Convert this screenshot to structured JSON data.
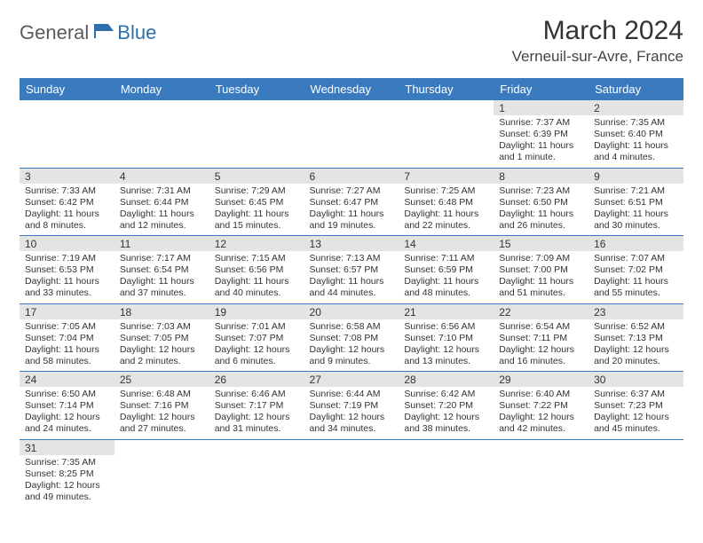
{
  "logo": {
    "part1": "General",
    "part2": "Blue"
  },
  "title": "March 2024",
  "location": "Verneuil-sur-Avre, France",
  "colors": {
    "header_bg": "#3a7bbf",
    "header_text": "#ffffff",
    "daynum_bg": "#e4e4e4",
    "row_border": "#3a7bbf",
    "logo_gray": "#5b5b5b",
    "logo_blue": "#2f6fae"
  },
  "weekdays": [
    "Sunday",
    "Monday",
    "Tuesday",
    "Wednesday",
    "Thursday",
    "Friday",
    "Saturday"
  ],
  "startOffset": 5,
  "days": [
    {
      "n": 1,
      "sr": "7:37 AM",
      "ss": "6:39 PM",
      "dl": "11 hours and 1 minute."
    },
    {
      "n": 2,
      "sr": "7:35 AM",
      "ss": "6:40 PM",
      "dl": "11 hours and 4 minutes."
    },
    {
      "n": 3,
      "sr": "7:33 AM",
      "ss": "6:42 PM",
      "dl": "11 hours and 8 minutes."
    },
    {
      "n": 4,
      "sr": "7:31 AM",
      "ss": "6:44 PM",
      "dl": "11 hours and 12 minutes."
    },
    {
      "n": 5,
      "sr": "7:29 AM",
      "ss": "6:45 PM",
      "dl": "11 hours and 15 minutes."
    },
    {
      "n": 6,
      "sr": "7:27 AM",
      "ss": "6:47 PM",
      "dl": "11 hours and 19 minutes."
    },
    {
      "n": 7,
      "sr": "7:25 AM",
      "ss": "6:48 PM",
      "dl": "11 hours and 22 minutes."
    },
    {
      "n": 8,
      "sr": "7:23 AM",
      "ss": "6:50 PM",
      "dl": "11 hours and 26 minutes."
    },
    {
      "n": 9,
      "sr": "7:21 AM",
      "ss": "6:51 PM",
      "dl": "11 hours and 30 minutes."
    },
    {
      "n": 10,
      "sr": "7:19 AM",
      "ss": "6:53 PM",
      "dl": "11 hours and 33 minutes."
    },
    {
      "n": 11,
      "sr": "7:17 AM",
      "ss": "6:54 PM",
      "dl": "11 hours and 37 minutes."
    },
    {
      "n": 12,
      "sr": "7:15 AM",
      "ss": "6:56 PM",
      "dl": "11 hours and 40 minutes."
    },
    {
      "n": 13,
      "sr": "7:13 AM",
      "ss": "6:57 PM",
      "dl": "11 hours and 44 minutes."
    },
    {
      "n": 14,
      "sr": "7:11 AM",
      "ss": "6:59 PM",
      "dl": "11 hours and 48 minutes."
    },
    {
      "n": 15,
      "sr": "7:09 AM",
      "ss": "7:00 PM",
      "dl": "11 hours and 51 minutes."
    },
    {
      "n": 16,
      "sr": "7:07 AM",
      "ss": "7:02 PM",
      "dl": "11 hours and 55 minutes."
    },
    {
      "n": 17,
      "sr": "7:05 AM",
      "ss": "7:04 PM",
      "dl": "11 hours and 58 minutes."
    },
    {
      "n": 18,
      "sr": "7:03 AM",
      "ss": "7:05 PM",
      "dl": "12 hours and 2 minutes."
    },
    {
      "n": 19,
      "sr": "7:01 AM",
      "ss": "7:07 PM",
      "dl": "12 hours and 6 minutes."
    },
    {
      "n": 20,
      "sr": "6:58 AM",
      "ss": "7:08 PM",
      "dl": "12 hours and 9 minutes."
    },
    {
      "n": 21,
      "sr": "6:56 AM",
      "ss": "7:10 PM",
      "dl": "12 hours and 13 minutes."
    },
    {
      "n": 22,
      "sr": "6:54 AM",
      "ss": "7:11 PM",
      "dl": "12 hours and 16 minutes."
    },
    {
      "n": 23,
      "sr": "6:52 AM",
      "ss": "7:13 PM",
      "dl": "12 hours and 20 minutes."
    },
    {
      "n": 24,
      "sr": "6:50 AM",
      "ss": "7:14 PM",
      "dl": "12 hours and 24 minutes."
    },
    {
      "n": 25,
      "sr": "6:48 AM",
      "ss": "7:16 PM",
      "dl": "12 hours and 27 minutes."
    },
    {
      "n": 26,
      "sr": "6:46 AM",
      "ss": "7:17 PM",
      "dl": "12 hours and 31 minutes."
    },
    {
      "n": 27,
      "sr": "6:44 AM",
      "ss": "7:19 PM",
      "dl": "12 hours and 34 minutes."
    },
    {
      "n": 28,
      "sr": "6:42 AM",
      "ss": "7:20 PM",
      "dl": "12 hours and 38 minutes."
    },
    {
      "n": 29,
      "sr": "6:40 AM",
      "ss": "7:22 PM",
      "dl": "12 hours and 42 minutes."
    },
    {
      "n": 30,
      "sr": "6:37 AM",
      "ss": "7:23 PM",
      "dl": "12 hours and 45 minutes."
    },
    {
      "n": 31,
      "sr": "7:35 AM",
      "ss": "8:25 PM",
      "dl": "12 hours and 49 minutes."
    }
  ],
  "labels": {
    "sunrise": "Sunrise:",
    "sunset": "Sunset:",
    "daylight": "Daylight:"
  }
}
